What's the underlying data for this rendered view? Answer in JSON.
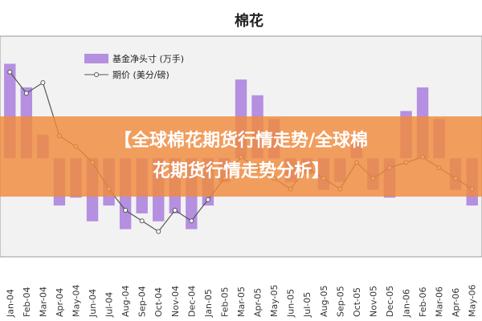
{
  "chart_data": {
    "type": "bar-line",
    "title": "棉花",
    "categories": [
      "Jan-04",
      "Feb-04",
      "Mar-04",
      "Apr-04",
      "May-04",
      "Jun-04",
      "Jul-04",
      "Aug-04",
      "Sep-04",
      "Oct-04",
      "Nov-04",
      "Dec-04",
      "Jan-05",
      "Feb-05",
      "Mar-05",
      "Apr-05",
      "May-05",
      "Jun-05",
      "Jul-05",
      "Aug-05",
      "Sep-05",
      "Oct-05",
      "Nov-05",
      "Dec-05",
      "Jan-06",
      "Feb-06",
      "Mar-06",
      "Apr-06",
      "May-06"
    ],
    "series": [
      {
        "name": "基金净头寸 (万手)",
        "color": "#b58fe0",
        "values": [
          12,
          9,
          3,
          -6,
          -5,
          -8,
          -6,
          -9,
          -7,
          -8,
          -7,
          -9,
          -6,
          -3,
          10,
          8,
          5,
          -3,
          -2,
          -4,
          -3,
          2,
          -4,
          -5,
          6,
          9,
          5,
          -4,
          -6
        ]
      },
      {
        "name": "期价 (美分/磅)",
        "color": "#555555",
        "axis": "y2",
        "values": [
          72,
          68,
          70,
          60,
          58,
          55,
          50,
          46,
          44,
          42,
          46,
          44,
          48,
          52,
          56,
          54,
          52,
          50,
          54,
          52,
          50,
          55,
          52,
          54,
          55,
          56,
          54,
          52,
          50
        ]
      }
    ],
    "ylim": [
      -12,
      15
    ],
    "y2lim": [
      38,
      78
    ]
  },
  "banner": {
    "lines": [
      "【全球棉花期货行情走势/全球棉",
      "花期货行情走势分析】"
    ]
  }
}
